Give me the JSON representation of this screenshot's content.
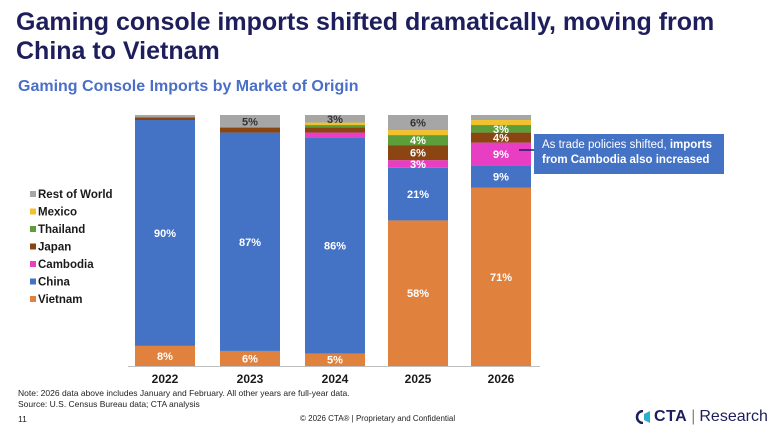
{
  "headline": "Gaming console imports shifted dramatically, moving from China to Vietnam",
  "callout": {
    "prefix": "As trade policies shifted, ",
    "bold": "imports from Cambodia also increased"
  },
  "footer": {
    "note": "Note: 2026 data above includes January and February. All other years are full-year data.",
    "source": "Source: U.S. Census Bureau data; CTA analysis",
    "page_number": "11",
    "copyright": "© 2026 CTA® | Proprietary and Confidential",
    "logo_brand": "CTA",
    "logo_division": "Research"
  },
  "colors": {
    "Vietnam": "#e0823d",
    "China": "#4472c4",
    "Cambodia": "#e83ec4",
    "Japan": "#8b4513",
    "Thailand": "#5b9e3a",
    "Mexico": "#f2c12e",
    "Rest of World": "#a6a6a6"
  },
  "chart_data": {
    "type": "bar",
    "stacked": true,
    "title": "Gaming Console Imports by Market of Origin",
    "categories": [
      "2022",
      "2023",
      "2024",
      "2025",
      "2026"
    ],
    "ylim": [
      0,
      100
    ],
    "legend_position": "left",
    "legend_order": [
      "Rest of World",
      "Mexico",
      "Thailand",
      "Japan",
      "Cambodia",
      "China",
      "Vietnam"
    ],
    "series": [
      {
        "name": "Vietnam",
        "values": [
          8,
          6,
          5,
          58,
          71
        ],
        "labels": [
          "8%",
          "6%",
          "5%",
          "58%",
          "71%"
        ]
      },
      {
        "name": "China",
        "values": [
          90,
          87,
          86,
          21,
          9
        ],
        "labels": [
          "90%",
          "87%",
          "86%",
          "21%",
          "9%"
        ]
      },
      {
        "name": "Cambodia",
        "values": [
          0,
          0,
          2,
          3,
          9
        ],
        "labels": [
          "",
          "",
          "",
          "3%",
          "9%"
        ]
      },
      {
        "name": "Japan",
        "values": [
          1,
          2,
          2,
          6,
          4
        ],
        "labels": [
          "",
          "",
          "",
          "6%",
          "4%"
        ]
      },
      {
        "name": "Thailand",
        "values": [
          0,
          0,
          1,
          4,
          3
        ],
        "labels": [
          "",
          "",
          "",
          "4%",
          "3%"
        ]
      },
      {
        "name": "Mexico",
        "values": [
          0,
          0,
          1,
          2,
          2
        ],
        "labels": [
          "",
          "",
          "",
          "",
          ""
        ]
      },
      {
        "name": "Rest of World",
        "values": [
          1,
          5,
          3,
          6,
          2
        ],
        "labels": [
          "",
          "5%",
          "3%",
          "6%",
          ""
        ]
      }
    ]
  }
}
